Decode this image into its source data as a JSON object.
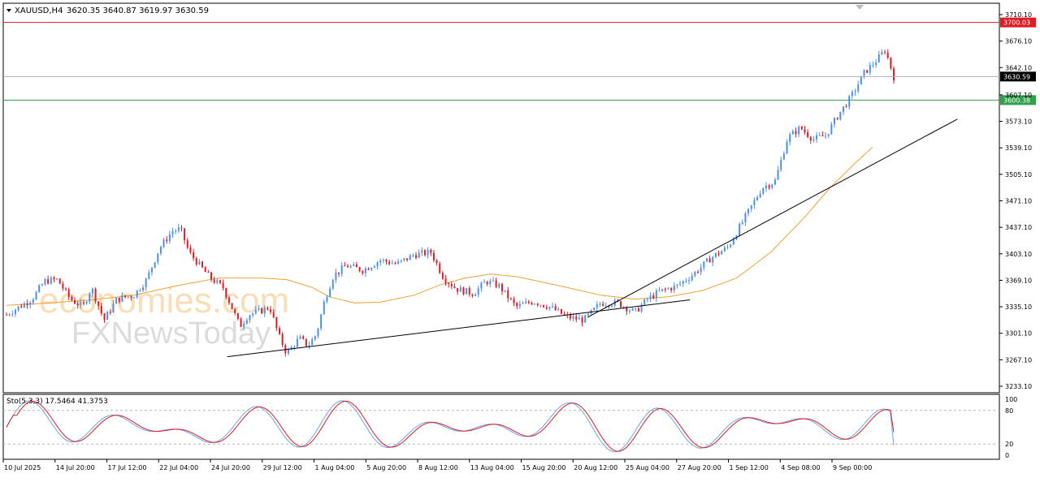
{
  "chart_data": {
    "type": "candlestick",
    "symbol": "XAUUSD,H4",
    "ohlc_header": "3620.35 3640.87 3619.97 3630.59",
    "price_ticks": [
      "3710.10",
      "3676.10",
      "3642.10",
      "3607.10",
      "3573.10",
      "3539.10",
      "3505.10",
      "3471.10",
      "3437.10",
      "3403.10",
      "3369.10",
      "3335.10",
      "3301.10",
      "3267.10",
      "3233.10"
    ],
    "price_axis": {
      "min": 3233.1,
      "max": 3710.1
    },
    "time_labels": [
      "10 Jul 2025",
      "14 Jul 20:00",
      "17 Jul 12:00",
      "22 Jul 04:00",
      "24 Jul 20:00",
      "29 Jul 12:00",
      "1 Aug 04:00",
      "5 Aug 20:00",
      "8 Aug 12:00",
      "13 Aug 04:00",
      "15 Aug 20:00",
      "20 Aug 12:00",
      "25 Aug 04:00",
      "27 Aug 20:00",
      "1 Sep 12:00",
      "4 Sep 08:00",
      "9 Sep 00:00"
    ],
    "horizontal_lines": [
      {
        "price": 3700.03,
        "label": "3700.03",
        "color": "#e01b24"
      },
      {
        "price": 3630.59,
        "label": "3630.59",
        "color": "#000000"
      },
      {
        "price": 3600.38,
        "label": "3600.38",
        "color": "#2ea04a"
      }
    ],
    "trendlines": [
      {
        "from": {
          "bar": 0.26,
          "price": 3271
        },
        "to": {
          "bar": 0.805,
          "price": 3344
        }
      },
      {
        "from": {
          "bar": 0.685,
          "price": 3322
        },
        "to": {
          "bar": 1.12,
          "price": 3576
        }
      }
    ],
    "close_path": [
      [
        0,
        3325
      ],
      [
        0.03,
        3345
      ],
      [
        0.045,
        3368
      ],
      [
        0.06,
        3370
      ],
      [
        0.075,
        3345
      ],
      [
        0.09,
        3335
      ],
      [
        0.1,
        3360
      ],
      [
        0.115,
        3318
      ],
      [
        0.13,
        3345
      ],
      [
        0.15,
        3350
      ],
      [
        0.165,
        3370
      ],
      [
        0.18,
        3410
      ],
      [
        0.195,
        3432
      ],
      [
        0.205,
        3435
      ],
      [
        0.215,
        3405
      ],
      [
        0.23,
        3385
      ],
      [
        0.24,
        3372
      ],
      [
        0.255,
        3360
      ],
      [
        0.265,
        3335
      ],
      [
        0.275,
        3310
      ],
      [
        0.285,
        3325
      ],
      [
        0.3,
        3330
      ],
      [
        0.31,
        3335
      ],
      [
        0.32,
        3300
      ],
      [
        0.33,
        3275
      ],
      [
        0.345,
        3295
      ],
      [
        0.355,
        3285
      ],
      [
        0.365,
        3300
      ],
      [
        0.375,
        3345
      ],
      [
        0.385,
        3375
      ],
      [
        0.4,
        3388
      ],
      [
        0.42,
        3382
      ],
      [
        0.44,
        3395
      ],
      [
        0.46,
        3390
      ],
      [
        0.48,
        3402
      ],
      [
        0.5,
        3405
      ],
      [
        0.515,
        3372
      ],
      [
        0.53,
        3358
      ],
      [
        0.55,
        3352
      ],
      [
        0.565,
        3368
      ],
      [
        0.58,
        3362
      ],
      [
        0.6,
        3335
      ],
      [
        0.62,
        3342
      ],
      [
        0.64,
        3335
      ],
      [
        0.66,
        3322
      ],
      [
        0.68,
        3318
      ],
      [
        0.7,
        3340
      ],
      [
        0.72,
        3340
      ],
      [
        0.74,
        3328
      ],
      [
        0.755,
        3345
      ],
      [
        0.77,
        3355
      ],
      [
        0.79,
        3362
      ],
      [
        0.81,
        3378
      ],
      [
        0.83,
        3398
      ],
      [
        0.85,
        3412
      ],
      [
        0.87,
        3450
      ],
      [
        0.89,
        3488
      ],
      [
        0.905,
        3496
      ],
      [
        0.92,
        3552
      ],
      [
        0.935,
        3565
      ],
      [
        0.95,
        3550
      ],
      [
        0.965,
        3555
      ],
      [
        0.98,
        3582
      ],
      [
        0.995,
        3605
      ],
      [
        1.01,
        3635
      ],
      [
        1.025,
        3652
      ],
      [
        1.035,
        3665
      ],
      [
        1.045,
        3630
      ]
    ],
    "ma_path": [
      [
        0,
        3337
      ],
      [
        0.05,
        3340
      ],
      [
        0.1,
        3344
      ],
      [
        0.15,
        3350
      ],
      [
        0.2,
        3362
      ],
      [
        0.25,
        3372
      ],
      [
        0.3,
        3372
      ],
      [
        0.33,
        3370
      ],
      [
        0.36,
        3360
      ],
      [
        0.38,
        3348
      ],
      [
        0.41,
        3340
      ],
      [
        0.44,
        3341
      ],
      [
        0.48,
        3350
      ],
      [
        0.51,
        3363
      ],
      [
        0.54,
        3372
      ],
      [
        0.57,
        3377
      ],
      [
        0.6,
        3374
      ],
      [
        0.63,
        3367
      ],
      [
        0.66,
        3360
      ],
      [
        0.7,
        3350
      ],
      [
        0.74,
        3345
      ],
      [
        0.78,
        3348
      ],
      [
        0.82,
        3356
      ],
      [
        0.86,
        3372
      ],
      [
        0.9,
        3405
      ],
      [
        0.94,
        3450
      ],
      [
        0.97,
        3488
      ],
      [
        1.0,
        3520
      ],
      [
        1.02,
        3540
      ]
    ],
    "stochastic": {
      "label": "Sto(5,3,3) 17.5464 41.3753",
      "levels": [
        "100",
        "80",
        "20",
        "0"
      ],
      "level_values": [
        100,
        80,
        20,
        0
      ],
      "main_last": 17.5464,
      "signal_last": 41.3753
    },
    "colors": {
      "bull": "#4d8ff0",
      "bear": "#e01b24",
      "ma": "#f0a030",
      "stoch_main": "#6aa6ee",
      "stoch_signal": "#e01b24",
      "trendline": "#000000"
    },
    "watermark": {
      "line1": "economies.com",
      "line2": "FXNewsToday"
    }
  }
}
